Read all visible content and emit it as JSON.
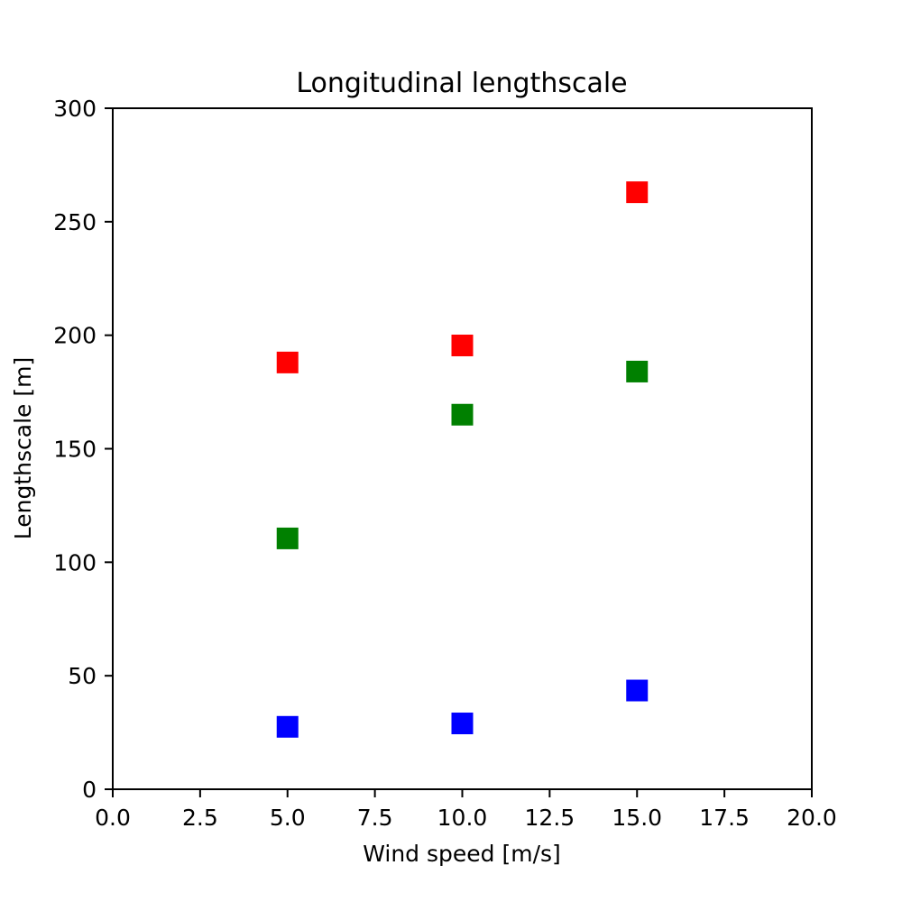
{
  "chart_data": {
    "type": "scatter",
    "title": "Longitudinal lengthscale",
    "xlabel": "Wind speed [m/s]",
    "ylabel": "Lengthscale [m]",
    "xlim": [
      0,
      20
    ],
    "ylim": [
      0,
      300
    ],
    "xticks": [
      "0.0",
      "2.5",
      "5.0",
      "7.5",
      "10.0",
      "12.5",
      "15.0",
      "17.5",
      "20.0"
    ],
    "xtick_values": [
      0,
      2.5,
      5,
      7.5,
      10,
      12.5,
      15,
      17.5,
      20
    ],
    "yticks": [
      "0",
      "50",
      "100",
      "150",
      "200",
      "250",
      "300"
    ],
    "ytick_values": [
      0,
      50,
      100,
      150,
      200,
      250,
      300
    ],
    "grid": false,
    "legend": false,
    "marker": "square",
    "series": [
      {
        "color": "#ff0000",
        "x": [
          5,
          10,
          15
        ],
        "y": [
          188,
          195.5,
          263
        ]
      },
      {
        "color": "#008000",
        "x": [
          5,
          10,
          15
        ],
        "y": [
          110.5,
          165,
          184
        ]
      },
      {
        "color": "#0000ff",
        "x": [
          5,
          10,
          15
        ],
        "y": [
          27.5,
          29,
          43.5
        ]
      }
    ]
  }
}
